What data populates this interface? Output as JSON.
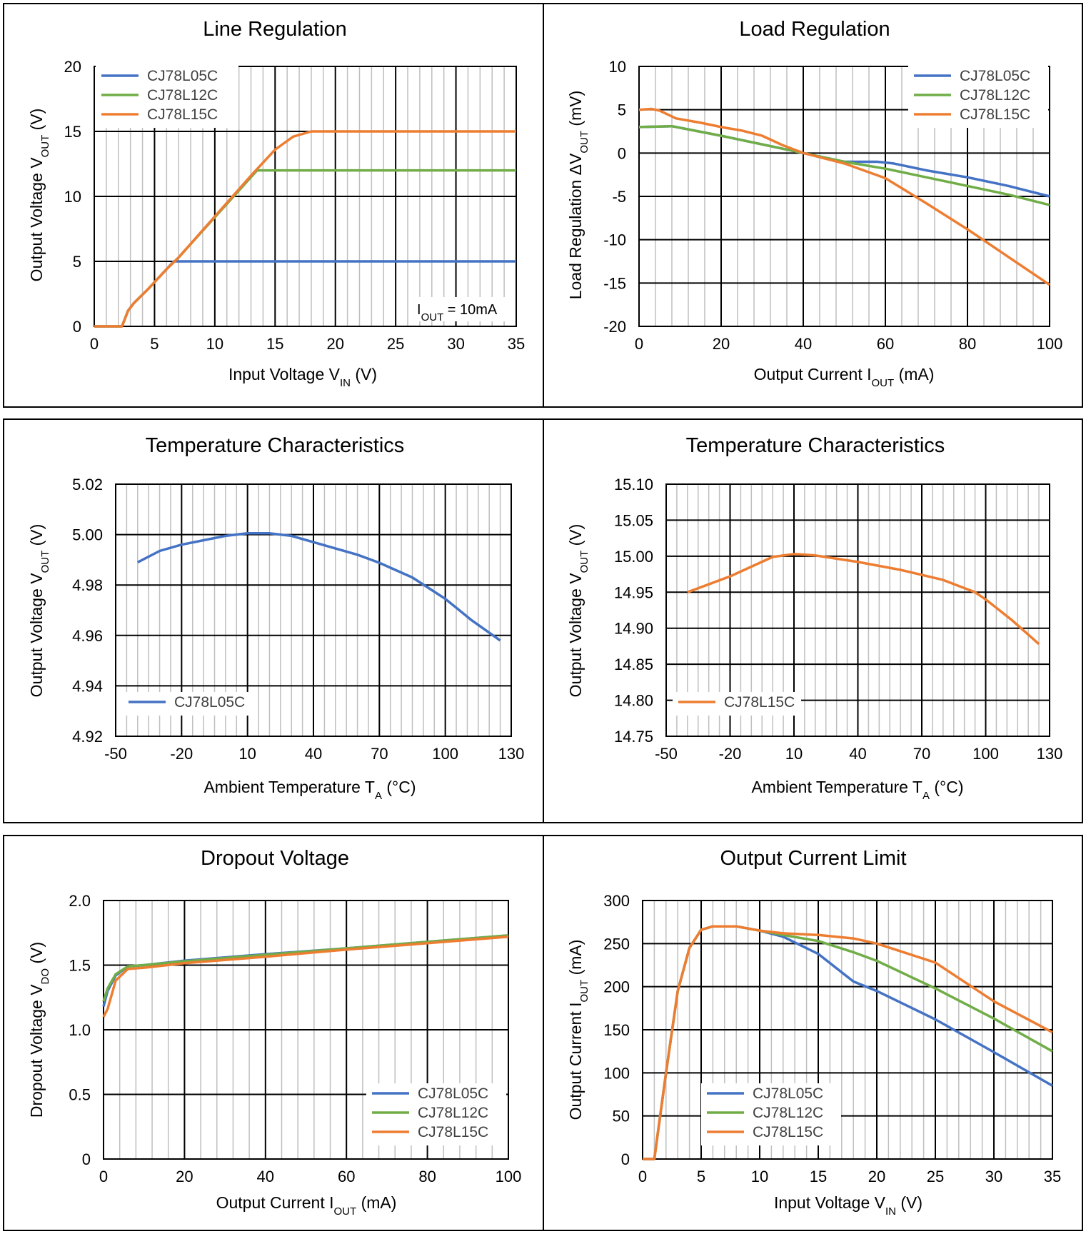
{
  "colors": {
    "CJ78L05C": "#4472C4",
    "CJ78L12C": "#70AD47",
    "CJ78L15C": "#ED7D31",
    "minor_grid": "#BFBFBF",
    "major_grid": "#000000"
  },
  "chart_data": [
    {
      "id": "line-regulation",
      "type": "line",
      "title": "Line Regulation",
      "xlabel": {
        "main": "Input Voltage V",
        "sub": "IN",
        "tail": " (V)"
      },
      "ylabel": {
        "main": "Output Voltage V",
        "sub": "OUT",
        "tail": " (V)"
      },
      "xlim": [
        0,
        35
      ],
      "ylim": [
        0,
        20
      ],
      "xticks": [
        0,
        5,
        10,
        15,
        20,
        25,
        30,
        35
      ],
      "xtick_labels": [
        "0",
        "5",
        "10",
        "15",
        "20",
        "25",
        "30",
        "35"
      ],
      "yticks": [
        0,
        5,
        10,
        15,
        20
      ],
      "ytick_labels": [
        "0",
        "5",
        "10",
        "15",
        "20"
      ],
      "minor_x_step": 1,
      "grid": true,
      "legend_position": "top-left",
      "annotation": {
        "main": "I",
        "sub": "OUT",
        "tail": " = 10mA"
      },
      "series": [
        {
          "name": "CJ78L05C",
          "color_key": "CJ78L05C",
          "points": [
            [
              0,
              0
            ],
            [
              2.3,
              0
            ],
            [
              2.8,
              1.2
            ],
            [
              3.3,
              1.8
            ],
            [
              4.5,
              2.9
            ],
            [
              6,
              4.4
            ],
            [
              6.6,
              5
            ],
            [
              7.5,
              5
            ],
            [
              35,
              5
            ]
          ]
        },
        {
          "name": "CJ78L12C",
          "color_key": "CJ78L12C",
          "points": [
            [
              0,
              0
            ],
            [
              2.3,
              0
            ],
            [
              2.8,
              1.2
            ],
            [
              3.3,
              1.8
            ],
            [
              4.5,
              2.9
            ],
            [
              6,
              4.4
            ],
            [
              7,
              5.3
            ],
            [
              13.5,
              12
            ],
            [
              35,
              12
            ]
          ]
        },
        {
          "name": "CJ78L15C",
          "color_key": "CJ78L15C",
          "points": [
            [
              0,
              0
            ],
            [
              2.3,
              0
            ],
            [
              2.8,
              1.2
            ],
            [
              3.3,
              1.8
            ],
            [
              4.5,
              2.9
            ],
            [
              6,
              4.4
            ],
            [
              7,
              5.3
            ],
            [
              13,
              11.6
            ],
            [
              15,
              13.6
            ],
            [
              16.5,
              14.6
            ],
            [
              18,
              15
            ],
            [
              35,
              15
            ]
          ]
        }
      ]
    },
    {
      "id": "load-regulation",
      "type": "line",
      "title": "Load Regulation",
      "xlabel": {
        "main": "Output Current I",
        "sub": "OUT",
        "tail": " (mA)"
      },
      "ylabel": {
        "main": "Load Regulation ΔV",
        "sub": "OUT",
        "tail": " (mV)"
      },
      "xlim": [
        0,
        100
      ],
      "ylim": [
        -20,
        10
      ],
      "xticks": [
        0,
        20,
        40,
        60,
        80,
        100
      ],
      "xtick_labels": [
        "0",
        "20",
        "40",
        "60",
        "80",
        "100"
      ],
      "yticks": [
        -20,
        -15,
        -10,
        -5,
        0,
        5,
        10
      ],
      "ytick_labels": [
        "-20",
        "-15",
        "-10",
        "-5",
        "0",
        "5",
        "10"
      ],
      "minor_x_step": 4,
      "grid": true,
      "legend_position": "top-right",
      "series": [
        {
          "name": "CJ78L05C",
          "color_key": "CJ78L05C",
          "points": [
            [
              0,
              3
            ],
            [
              8,
              3.1
            ],
            [
              20,
              2
            ],
            [
              30,
              1
            ],
            [
              40,
              0
            ],
            [
              50,
              -1
            ],
            [
              58,
              -1
            ],
            [
              62,
              -1.2
            ],
            [
              70,
              -2
            ],
            [
              80,
              -2.8
            ],
            [
              90,
              -3.8
            ],
            [
              100,
              -5
            ]
          ]
        },
        {
          "name": "CJ78L12C",
          "color_key": "CJ78L12C",
          "points": [
            [
              0,
              3
            ],
            [
              8,
              3.1
            ],
            [
              20,
              2
            ],
            [
              30,
              1
            ],
            [
              40,
              0
            ],
            [
              50,
              -1
            ],
            [
              60,
              -1.8
            ],
            [
              70,
              -2.8
            ],
            [
              80,
              -3.8
            ],
            [
              90,
              -4.8
            ],
            [
              100,
              -6
            ]
          ]
        },
        {
          "name": "CJ78L15C",
          "color_key": "CJ78L15C",
          "points": [
            [
              0,
              5
            ],
            [
              3,
              5.1
            ],
            [
              5,
              4.9
            ],
            [
              9,
              4
            ],
            [
              15,
              3.5
            ],
            [
              20,
              3
            ],
            [
              25,
              2.6
            ],
            [
              30,
              2
            ],
            [
              35,
              0.9
            ],
            [
              40,
              0
            ],
            [
              50,
              -1.2
            ],
            [
              60,
              -2.9
            ],
            [
              70,
              -5.8
            ],
            [
              80,
              -8.8
            ],
            [
              90,
              -12
            ],
            [
              100,
              -15.2
            ]
          ]
        }
      ]
    },
    {
      "id": "temperature-5v",
      "type": "line",
      "title": "Temperature Characteristics",
      "xlabel": {
        "main": "Ambient Temperature T",
        "sub": "A",
        "tail": " (°C)"
      },
      "ylabel": {
        "main": "Output Voltage V",
        "sub": "OUT",
        "tail": " (V)"
      },
      "xlim": [
        -50,
        130
      ],
      "ylim": [
        4.92,
        5.02
      ],
      "xticks": [
        -50,
        -20,
        10,
        40,
        70,
        100,
        130
      ],
      "xtick_labels": [
        "-50",
        "-20",
        "10",
        "40",
        "70",
        "100",
        "130"
      ],
      "yticks": [
        4.92,
        4.94,
        4.96,
        4.98,
        5.0,
        5.02
      ],
      "ytick_labels": [
        "4.92",
        "4.94",
        "4.96",
        "4.98",
        "5.00",
        "5.02"
      ],
      "minor_x_step": 5,
      "grid": true,
      "legend_position": "bottom-left",
      "series": [
        {
          "name": "CJ78L05C",
          "color_key": "CJ78L05C",
          "points": [
            [
              -40,
              4.989
            ],
            [
              -30,
              4.9935
            ],
            [
              -20,
              4.996
            ],
            [
              0,
              4.9995
            ],
            [
              10,
              5.0005
            ],
            [
              20,
              5.0005
            ],
            [
              30,
              4.9995
            ],
            [
              40,
              4.997
            ],
            [
              60,
              4.992
            ],
            [
              70,
              4.9888
            ],
            [
              85,
              4.983
            ],
            [
              100,
              4.9745
            ],
            [
              112,
              4.966
            ],
            [
              125,
              4.958
            ]
          ]
        }
      ]
    },
    {
      "id": "temperature-15v",
      "type": "line",
      "title": "Temperature Characteristics",
      "xlabel": {
        "main": "Ambient Temperature T",
        "sub": "A",
        "tail": " (°C)"
      },
      "ylabel": {
        "main": "Output Voltage V",
        "sub": "OUT",
        "tail": " (V)"
      },
      "xlim": [
        -50,
        130
      ],
      "ylim": [
        14.75,
        15.1
      ],
      "xticks": [
        -50,
        -20,
        10,
        40,
        70,
        100,
        130
      ],
      "xtick_labels": [
        "-50",
        "-20",
        "10",
        "40",
        "70",
        "100",
        "130"
      ],
      "yticks": [
        14.75,
        14.8,
        14.85,
        14.9,
        14.95,
        15.0,
        15.05,
        15.1
      ],
      "ytick_labels": [
        "14.75",
        "14.80",
        "14.85",
        "14.90",
        "14.95",
        "15.00",
        "15.05",
        "15.10"
      ],
      "minor_x_step": 5,
      "grid": true,
      "legend_position": "bottom-left",
      "series": [
        {
          "name": "CJ78L15C",
          "color_key": "CJ78L15C",
          "points": [
            [
              -40,
              14.95
            ],
            [
              -20,
              14.972
            ],
            [
              0,
              14.999
            ],
            [
              10,
              15.003
            ],
            [
              20,
              15.001
            ],
            [
              40,
              14.992
            ],
            [
              60,
              14.981
            ],
            [
              80,
              14.967
            ],
            [
              95,
              14.95
            ],
            [
              100,
              14.94
            ],
            [
              112,
              14.912
            ],
            [
              125,
              14.878
            ]
          ]
        }
      ]
    },
    {
      "id": "dropout-voltage",
      "type": "line",
      "title": "Dropout Voltage",
      "xlabel": {
        "main": "Output Current I",
        "sub": "OUT",
        "tail": " (mA)"
      },
      "ylabel": {
        "main": "Dropout Voltage V",
        "sub": "DO",
        "tail": " (V)"
      },
      "xlim": [
        0,
        100
      ],
      "ylim": [
        0,
        2.0
      ],
      "xticks": [
        0,
        20,
        40,
        60,
        80,
        100
      ],
      "xtick_labels": [
        "0",
        "20",
        "40",
        "60",
        "80",
        "100"
      ],
      "yticks": [
        0,
        0.5,
        1.0,
        1.5,
        2.0
      ],
      "ytick_labels": [
        "0",
        "0.5",
        "1.0",
        "1.5",
        "2.0"
      ],
      "minor_x_step": 4,
      "grid": true,
      "legend_position": "bottom-right",
      "series": [
        {
          "name": "CJ78L05C",
          "color_key": "CJ78L05C",
          "points": [
            [
              0,
              1.18
            ],
            [
              1,
              1.3
            ],
            [
              3,
              1.42
            ],
            [
              6,
              1.49
            ],
            [
              10,
              1.5
            ],
            [
              20,
              1.535
            ],
            [
              40,
              1.585
            ],
            [
              60,
              1.63
            ],
            [
              80,
              1.68
            ],
            [
              100,
              1.73
            ]
          ]
        },
        {
          "name": "CJ78L12C",
          "color_key": "CJ78L12C",
          "points": [
            [
              0,
              1.22
            ],
            [
              1,
              1.32
            ],
            [
              3,
              1.43
            ],
            [
              6,
              1.49
            ],
            [
              10,
              1.5
            ],
            [
              20,
              1.53
            ],
            [
              40,
              1.58
            ],
            [
              60,
              1.63
            ],
            [
              80,
              1.68
            ],
            [
              100,
              1.73
            ]
          ]
        },
        {
          "name": "CJ78L15C",
          "color_key": "CJ78L15C",
          "points": [
            [
              0,
              1.1
            ],
            [
              1,
              1.16
            ],
            [
              3,
              1.38
            ],
            [
              6,
              1.47
            ],
            [
              10,
              1.48
            ],
            [
              20,
              1.515
            ],
            [
              40,
              1.565
            ],
            [
              60,
              1.62
            ],
            [
              80,
              1.67
            ],
            [
              100,
              1.72
            ]
          ]
        }
      ]
    },
    {
      "id": "output-current-limit",
      "type": "line",
      "title": "Output Current Limit",
      "xlabel": {
        "main": "Input Voltage V",
        "sub": "IN",
        "tail": " (V)"
      },
      "ylabel": {
        "main": "Output Current I",
        "sub": "OUT",
        "tail": " (mA)"
      },
      "xlim": [
        0,
        35
      ],
      "ylim": [
        0,
        300
      ],
      "xticks": [
        0,
        5,
        10,
        15,
        20,
        25,
        30,
        35
      ],
      "xtick_labels": [
        "0",
        "5",
        "10",
        "15",
        "20",
        "25",
        "30",
        "35"
      ],
      "yticks": [
        0,
        50,
        100,
        150,
        200,
        250,
        300
      ],
      "ytick_labels": [
        "0",
        "50",
        "100",
        "150",
        "200",
        "250",
        "300"
      ],
      "minor_x_step": 1,
      "grid": true,
      "legend_position": "bottom-left",
      "series": [
        {
          "name": "CJ78L05C",
          "color_key": "CJ78L05C",
          "points": [
            [
              0,
              0
            ],
            [
              1,
              0
            ],
            [
              2,
              100
            ],
            [
              3,
              195
            ],
            [
              4,
              245
            ],
            [
              5,
              266
            ],
            [
              6,
              270
            ],
            [
              8,
              270
            ],
            [
              10,
              265
            ],
            [
              12,
              258
            ],
            [
              15,
              238
            ],
            [
              18,
              206
            ],
            [
              20,
              195
            ],
            [
              25,
              162
            ],
            [
              30,
              124
            ],
            [
              35,
              85
            ]
          ]
        },
        {
          "name": "CJ78L12C",
          "color_key": "CJ78L12C",
          "points": [
            [
              0,
              0
            ],
            [
              1,
              0
            ],
            [
              2,
              100
            ],
            [
              3,
              195
            ],
            [
              4,
              245
            ],
            [
              5,
              266
            ],
            [
              6,
              270
            ],
            [
              8,
              270
            ],
            [
              10,
              265
            ],
            [
              12,
              260
            ],
            [
              15,
              253
            ],
            [
              18,
              240
            ],
            [
              20,
              230
            ],
            [
              25,
              198
            ],
            [
              30,
              163
            ],
            [
              35,
              125
            ]
          ]
        },
        {
          "name": "CJ78L15C",
          "color_key": "CJ78L15C",
          "points": [
            [
              0,
              0
            ],
            [
              1,
              0
            ],
            [
              2,
              100
            ],
            [
              3,
              195
            ],
            [
              4,
              245
            ],
            [
              5,
              266
            ],
            [
              6,
              270
            ],
            [
              8,
              270
            ],
            [
              10,
              265
            ],
            [
              12,
              262
            ],
            [
              15,
              260
            ],
            [
              18,
              256
            ],
            [
              20,
              250
            ],
            [
              25,
              228
            ],
            [
              30,
              183
            ],
            [
              35,
              147
            ]
          ]
        }
      ]
    }
  ]
}
